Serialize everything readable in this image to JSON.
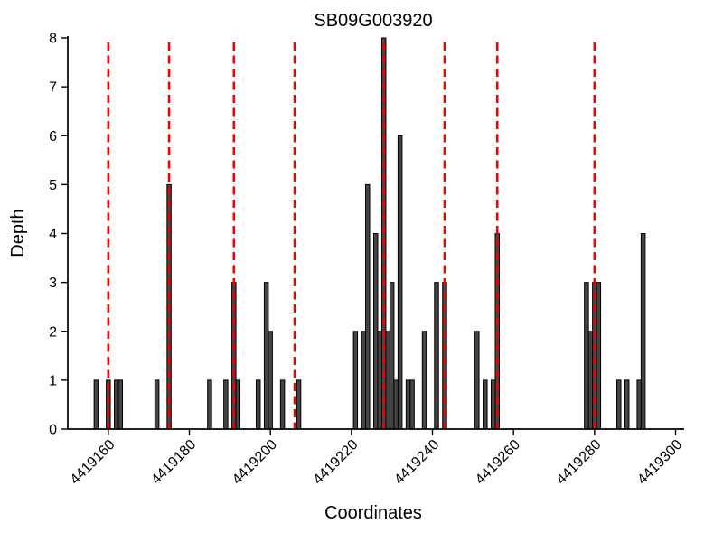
{
  "chart_data": {
    "type": "bar",
    "title": "SB09G003920",
    "xlabel": "Coordinates",
    "ylabel": "Depth",
    "xlim": [
      4419150,
      4419301
    ],
    "ylim": [
      0,
      8
    ],
    "xticks": [
      4419160,
      4419180,
      4419200,
      4419220,
      4419240,
      4419260,
      4419280,
      4419300
    ],
    "yticks": [
      0,
      1,
      2,
      3,
      4,
      5,
      6,
      7,
      8
    ],
    "grid": false,
    "legend": "none",
    "bar_color": "#454545",
    "bar_edge_color": "#000000",
    "marker_line_color": "#f40000",
    "axis_color": "#000000",
    "bars": [
      {
        "x": 4419157,
        "h": 1
      },
      {
        "x": 4419160,
        "h": 1
      },
      {
        "x": 4419162,
        "h": 1
      },
      {
        "x": 4419163,
        "h": 1
      },
      {
        "x": 4419172,
        "h": 1
      },
      {
        "x": 4419175,
        "h": 5
      },
      {
        "x": 4419185,
        "h": 1
      },
      {
        "x": 4419189,
        "h": 1
      },
      {
        "x": 4419191,
        "h": 3
      },
      {
        "x": 4419192,
        "h": 1
      },
      {
        "x": 4419197,
        "h": 1
      },
      {
        "x": 4419199,
        "h": 3
      },
      {
        "x": 4419200,
        "h": 2
      },
      {
        "x": 4419203,
        "h": 1
      },
      {
        "x": 4419207,
        "h": 1
      },
      {
        "x": 4419221,
        "h": 2
      },
      {
        "x": 4419223,
        "h": 2
      },
      {
        "x": 4419224,
        "h": 5
      },
      {
        "x": 4419226,
        "h": 4
      },
      {
        "x": 4419227,
        "h": 2
      },
      {
        "x": 4419228,
        "h": 8
      },
      {
        "x": 4419229,
        "h": 2
      },
      {
        "x": 4419230,
        "h": 3
      },
      {
        "x": 4419231,
        "h": 1
      },
      {
        "x": 4419232,
        "h": 6
      },
      {
        "x": 4419234,
        "h": 1
      },
      {
        "x": 4419235,
        "h": 1
      },
      {
        "x": 4419238,
        "h": 2
      },
      {
        "x": 4419241,
        "h": 3
      },
      {
        "x": 4419243,
        "h": 3
      },
      {
        "x": 4419251,
        "h": 2
      },
      {
        "x": 4419253,
        "h": 1
      },
      {
        "x": 4419255,
        "h": 1
      },
      {
        "x": 4419256,
        "h": 4
      },
      {
        "x": 4419278,
        "h": 3
      },
      {
        "x": 4419279,
        "h": 2
      },
      {
        "x": 4419280,
        "h": 3
      },
      {
        "x": 4419281,
        "h": 3
      },
      {
        "x": 4419286,
        "h": 1
      },
      {
        "x": 4419288,
        "h": 1
      },
      {
        "x": 4419291,
        "h": 1
      },
      {
        "x": 4419292,
        "h": 4
      }
    ],
    "vlines": [
      4419160,
      4419175,
      4419191,
      4419206,
      4419228,
      4419243,
      4419256,
      4419280
    ]
  }
}
